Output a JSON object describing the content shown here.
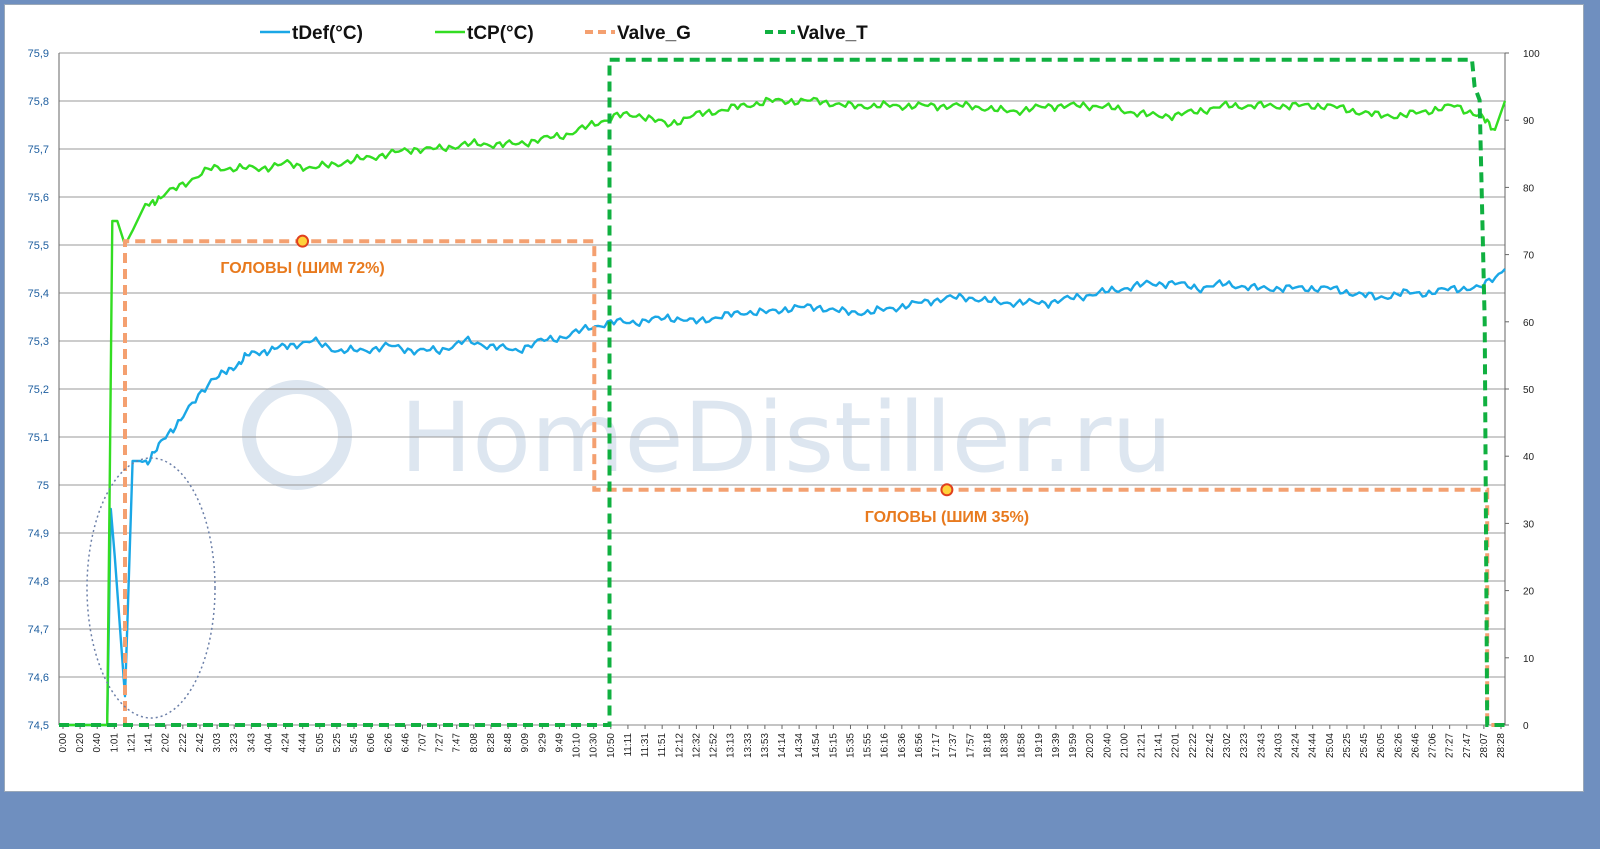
{
  "chart_data": {
    "type": "line",
    "legend": {
      "placement": "top",
      "items": [
        {
          "name": "tDef(°C)",
          "color": "#1aa7e6",
          "style": "solid"
        },
        {
          "name": "tCP(°C)",
          "color": "#33dd22",
          "style": "solid"
        },
        {
          "name": "Valve_G",
          "color": "#f4a070",
          "style": "dashed"
        },
        {
          "name": "Valve_T",
          "color": "#10b040",
          "style": "dashed"
        }
      ]
    },
    "y_left": {
      "min": 74.5,
      "max": 75.9,
      "ticks": [
        "75,9",
        "75,8",
        "75,7",
        "75,6",
        "75,5",
        "75,4",
        "75,3",
        "75,2",
        "75,1",
        "75",
        "74,9",
        "74,8",
        "74,7",
        "74,6",
        "74,5"
      ]
    },
    "y_right": {
      "min": 0,
      "max": 100,
      "ticks": [
        "100",
        "90",
        "80",
        "70",
        "60",
        "50",
        "40",
        "30",
        "20",
        "10",
        "0"
      ]
    },
    "x_ticks": [
      "0:00",
      "0:20",
      "0:40",
      "1:01",
      "1:21",
      "1:41",
      "2:02",
      "2:22",
      "2:42",
      "3:03",
      "3:23",
      "3:43",
      "4:04",
      "4:24",
      "4:44",
      "5:05",
      "5:25",
      "5:45",
      "6:06",
      "6:26",
      "6:46",
      "7:07",
      "7:27",
      "7:47",
      "8:08",
      "8:28",
      "8:48",
      "9:09",
      "9:29",
      "9:49",
      "10:10",
      "10:30",
      "10:50",
      "11:11",
      "11:31",
      "11:51",
      "12:12",
      "12:32",
      "12:52",
      "13:13",
      "13:33",
      "13:53",
      "14:14",
      "14:34",
      "14:54",
      "15:15",
      "15:35",
      "15:55",
      "16:16",
      "16:36",
      "16:56",
      "17:17",
      "17:37",
      "17:57",
      "18:18",
      "18:38",
      "18:58",
      "19:19",
      "19:39",
      "19:59",
      "20:20",
      "20:40",
      "21:00",
      "21:21",
      "21:41",
      "22:01",
      "22:22",
      "22:42",
      "23:02",
      "23:23",
      "23:43",
      "24:03",
      "24:24",
      "24:44",
      "25:04",
      "25:25",
      "25:45",
      "26:05",
      "26:26",
      "26:46",
      "27:06",
      "27:27",
      "27:47",
      "28:07",
      "28:28"
    ],
    "series": [
      {
        "name": "tDef(°C)",
        "axis": "left",
        "color": "#1aa7e6",
        "points": [
          [
            0,
            74.5
          ],
          [
            0.95,
            74.5
          ],
          [
            1.02,
            74.95
          ],
          [
            1.1,
            74.85
          ],
          [
            1.3,
            74.56
          ],
          [
            1.35,
            74.72
          ],
          [
            1.45,
            75.05
          ],
          [
            1.75,
            75.05
          ],
          [
            2.1,
            75.1
          ],
          [
            2.5,
            75.15
          ],
          [
            3.0,
            75.22
          ],
          [
            3.4,
            75.24
          ],
          [
            3.7,
            75.27
          ],
          [
            4.1,
            75.28
          ],
          [
            4.5,
            75.29
          ],
          [
            5.0,
            75.3
          ],
          [
            5.5,
            75.28
          ],
          [
            6.0,
            75.28
          ],
          [
            6.5,
            75.29
          ],
          [
            7.0,
            75.28
          ],
          [
            7.5,
            75.28
          ],
          [
            8.0,
            75.3
          ],
          [
            8.5,
            75.29
          ],
          [
            9.0,
            75.28
          ],
          [
            9.5,
            75.3
          ],
          [
            10.0,
            75.31
          ],
          [
            10.5,
            75.33
          ],
          [
            11.0,
            75.34
          ],
          [
            11.5,
            75.34
          ],
          [
            12.0,
            75.35
          ],
          [
            12.5,
            75.34
          ],
          [
            13.0,
            75.35
          ],
          [
            13.5,
            75.36
          ],
          [
            14.0,
            75.36
          ],
          [
            14.5,
            75.37
          ],
          [
            15.0,
            75.37
          ],
          [
            15.5,
            75.36
          ],
          [
            16.0,
            75.36
          ],
          [
            16.5,
            75.37
          ],
          [
            17.0,
            75.38
          ],
          [
            17.5,
            75.39
          ],
          [
            18.0,
            75.39
          ],
          [
            18.5,
            75.38
          ],
          [
            19.0,
            75.38
          ],
          [
            19.5,
            75.38
          ],
          [
            20.0,
            75.39
          ],
          [
            20.5,
            75.4
          ],
          [
            21.0,
            75.41
          ],
          [
            21.5,
            75.42
          ],
          [
            22.0,
            75.42
          ],
          [
            22.5,
            75.41
          ],
          [
            23.0,
            75.42
          ],
          [
            23.5,
            75.41
          ],
          [
            24.0,
            75.41
          ],
          [
            24.5,
            75.41
          ],
          [
            25.0,
            75.41
          ],
          [
            25.5,
            75.4
          ],
          [
            26.0,
            75.39
          ],
          [
            26.5,
            75.4
          ],
          [
            27.0,
            75.4
          ],
          [
            27.5,
            75.41
          ],
          [
            28.0,
            75.41
          ],
          [
            28.5,
            75.45
          ]
        ]
      },
      {
        "name": "tCP(°C)",
        "axis": "left",
        "color": "#33dd22",
        "points": [
          [
            0,
            74.5
          ],
          [
            0.95,
            74.5
          ],
          [
            1.0,
            75.0
          ],
          [
            1.05,
            75.55
          ],
          [
            1.15,
            75.55
          ],
          [
            1.3,
            75.5
          ],
          [
            1.45,
            75.53
          ],
          [
            1.7,
            75.58
          ],
          [
            2.0,
            75.6
          ],
          [
            2.5,
            75.63
          ],
          [
            3.0,
            75.66
          ],
          [
            3.5,
            75.66
          ],
          [
            4.0,
            75.66
          ],
          [
            4.5,
            75.67
          ],
          [
            5.0,
            75.66
          ],
          [
            5.5,
            75.67
          ],
          [
            6.0,
            75.68
          ],
          [
            6.5,
            75.69
          ],
          [
            7.0,
            75.7
          ],
          [
            7.5,
            75.7
          ],
          [
            8.0,
            75.71
          ],
          [
            8.5,
            75.71
          ],
          [
            9.0,
            75.71
          ],
          [
            9.5,
            75.72
          ],
          [
            10.0,
            75.73
          ],
          [
            10.5,
            75.75
          ],
          [
            11.0,
            75.77
          ],
          [
            11.5,
            75.77
          ],
          [
            12.0,
            75.75
          ],
          [
            12.5,
            75.77
          ],
          [
            13.0,
            75.78
          ],
          [
            13.5,
            75.79
          ],
          [
            14.0,
            75.8
          ],
          [
            14.5,
            75.8
          ],
          [
            15.0,
            75.8
          ],
          [
            15.5,
            75.79
          ],
          [
            16.0,
            75.79
          ],
          [
            16.5,
            75.79
          ],
          [
            17.0,
            75.79
          ],
          [
            17.5,
            75.79
          ],
          [
            18.0,
            75.79
          ],
          [
            18.5,
            75.78
          ],
          [
            19.0,
            75.78
          ],
          [
            19.5,
            75.79
          ],
          [
            20.0,
            75.79
          ],
          [
            20.5,
            75.79
          ],
          [
            21.0,
            75.78
          ],
          [
            21.5,
            75.77
          ],
          [
            22.0,
            75.77
          ],
          [
            22.5,
            75.78
          ],
          [
            23.0,
            75.79
          ],
          [
            23.5,
            75.79
          ],
          [
            24.0,
            75.79
          ],
          [
            24.5,
            75.79
          ],
          [
            25.0,
            75.79
          ],
          [
            25.5,
            75.78
          ],
          [
            26.0,
            75.77
          ],
          [
            26.5,
            75.77
          ],
          [
            27.0,
            75.78
          ],
          [
            27.5,
            75.79
          ],
          [
            28.0,
            75.77
          ],
          [
            28.3,
            75.74
          ],
          [
            28.5,
            75.8
          ]
        ]
      },
      {
        "name": "Valve_G",
        "axis": "right",
        "color": "#f4a070",
        "dashed": true,
        "points": [
          [
            0,
            0
          ],
          [
            1.3,
            0
          ],
          [
            1.3,
            72
          ],
          [
            10.55,
            72
          ],
          [
            10.55,
            35
          ],
          [
            28.15,
            35
          ],
          [
            28.15,
            0
          ],
          [
            28.5,
            0
          ]
        ]
      },
      {
        "name": "Valve_T",
        "axis": "right",
        "color": "#10b040",
        "dashed": true,
        "points": [
          [
            0,
            0
          ],
          [
            10.85,
            0
          ],
          [
            10.85,
            99
          ],
          [
            27.85,
            99
          ],
          [
            27.9,
            95
          ],
          [
            28.0,
            93
          ],
          [
            28.1,
            60
          ],
          [
            28.15,
            0
          ],
          [
            28.5,
            0
          ]
        ]
      }
    ],
    "annotations": [
      {
        "text": "ГОЛОВЫ (ШИМ 72%)",
        "x": 4.8,
        "y_right": 72
      },
      {
        "text": "ГОЛОВЫ (ШИМ 35%)",
        "x": 17.5,
        "y_right": 35
      }
    ],
    "watermark": "HomeDistiller.ru",
    "grid": true
  }
}
